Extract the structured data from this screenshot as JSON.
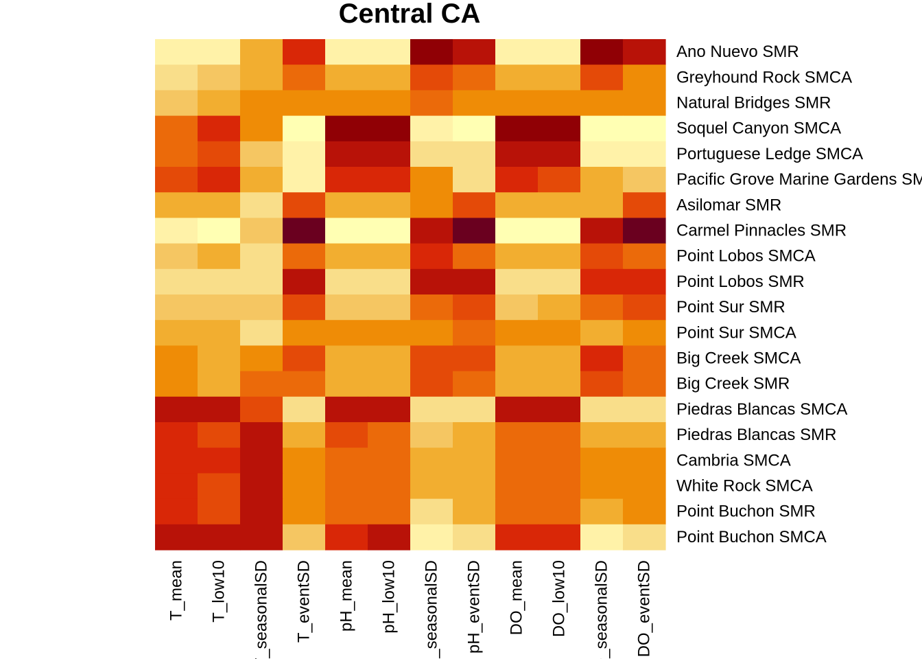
{
  "chart_data": {
    "type": "heatmap",
    "title": "Central CA",
    "columns": [
      "T_mean",
      "T_low10",
      "T_seasonalSD",
      "T_eventSD",
      "pH_mean",
      "pH_low10",
      "pH_seasonalSD",
      "pH_eventSD",
      "DO_mean",
      "DO_low10",
      "DO_seasonalSD",
      "DO_eventSD"
    ],
    "rows": [
      "Ano Nuevo SMR",
      "Greyhound Rock SMCA",
      "Natural Bridges SMR",
      "Soquel Canyon SMCA",
      "Portuguese Ledge SMCA",
      "Pacific Grove Marine Gardens SMCA",
      "Asilomar SMR",
      "Carmel Pinnacles SMR",
      "Point Lobos SMCA",
      "Point Lobos SMR",
      "Point Sur SMR",
      "Point Sur SMCA",
      "Big Creek SMCA",
      "Big Creek SMR",
      "Piedras Blancas SMCA",
      "Piedras Blancas SMR",
      "Cambria SMCA",
      "White Rock SMCA",
      "Point Buchon SMR",
      "Point Buchon SMCA"
    ],
    "color_scale": [
      "#FFFFB3",
      "#FFF2A8",
      "#F9DE8A",
      "#F5C662",
      "#F2AE30",
      "#EF8C06",
      "#EB6A0A",
      "#E44A08",
      "#D92707",
      "#B81208",
      "#900005",
      "#6A001F"
    ],
    "color_scale_order": "low-to-high",
    "values": [
      [
        1,
        1,
        4,
        8,
        1,
        1,
        10,
        9,
        1,
        1,
        10,
        9
      ],
      [
        2,
        3,
        4,
        6,
        4,
        4,
        7,
        6,
        4,
        4,
        7,
        5
      ],
      [
        3,
        4,
        5,
        5,
        5,
        5,
        6,
        5,
        5,
        5,
        5,
        5
      ],
      [
        6,
        8,
        5,
        0,
        10,
        10,
        1,
        0,
        10,
        10,
        0,
        0
      ],
      [
        6,
        7,
        3,
        1,
        9,
        9,
        2,
        2,
        9,
        9,
        1,
        1
      ],
      [
        7,
        8,
        4,
        1,
        8,
        8,
        5,
        2,
        8,
        7,
        4,
        3
      ],
      [
        4,
        4,
        2,
        7,
        4,
        4,
        5,
        7,
        4,
        4,
        4,
        7
      ],
      [
        1,
        0,
        3,
        11,
        0,
        0,
        9,
        11,
        0,
        0,
        9,
        11
      ],
      [
        3,
        4,
        2,
        6,
        4,
        4,
        8,
        6,
        4,
        4,
        7,
        6
      ],
      [
        2,
        2,
        2,
        9,
        2,
        2,
        9,
        9,
        2,
        2,
        8,
        8
      ],
      [
        3,
        3,
        3,
        7,
        3,
        3,
        6,
        7,
        3,
        4,
        6,
        7
      ],
      [
        4,
        4,
        2,
        5,
        5,
        5,
        5,
        6,
        5,
        5,
        4,
        5
      ],
      [
        5,
        4,
        5,
        7,
        4,
        4,
        7,
        7,
        4,
        4,
        8,
        6
      ],
      [
        5,
        4,
        6,
        6,
        4,
        4,
        7,
        6,
        4,
        4,
        7,
        6
      ],
      [
        9,
        9,
        7,
        2,
        9,
        9,
        2,
        2,
        9,
        9,
        2,
        2
      ],
      [
        8,
        7,
        9,
        4,
        7,
        6,
        3,
        4,
        6,
        6,
        4,
        4
      ],
      [
        8,
        8,
        9,
        5,
        6,
        6,
        4,
        4,
        6,
        6,
        5,
        5
      ],
      [
        8,
        7,
        9,
        5,
        6,
        6,
        4,
        4,
        6,
        6,
        5,
        5
      ],
      [
        8,
        7,
        9,
        5,
        6,
        6,
        2,
        4,
        6,
        6,
        4,
        5
      ],
      [
        9,
        9,
        9,
        3,
        8,
        9,
        1,
        2,
        8,
        8,
        1,
        2
      ]
    ]
  }
}
